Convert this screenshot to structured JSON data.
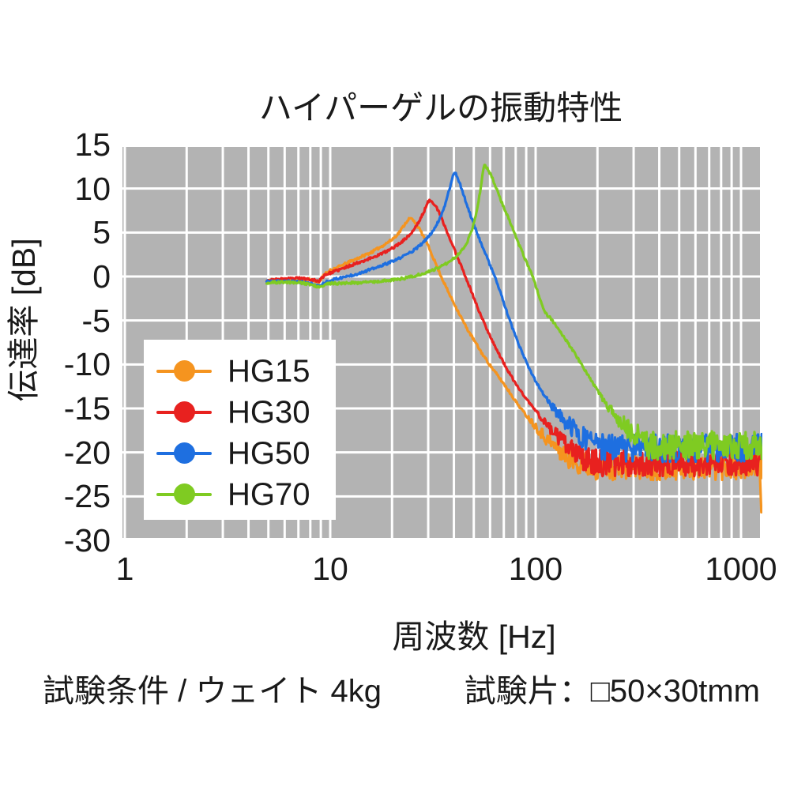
{
  "title": "ハイパーゲルの振動特性",
  "caption": {
    "left": "試験条件 / ウェイト 4kg",
    "right": "試験片：□50×30tmm"
  },
  "legend": {
    "items": [
      {
        "label": "HG15",
        "color": "#f5941f"
      },
      {
        "label": "HG30",
        "color": "#e8211f"
      },
      {
        "label": "HG50",
        "color": "#1e6fe0"
      },
      {
        "label": "HG70",
        "color": "#7fcb22"
      }
    ]
  },
  "colors": {
    "panel_bg": "#b3b3b3",
    "grid": "#ffffff",
    "text": "#1a1a1a",
    "page_bg": "#ffffff"
  },
  "chart_data": {
    "type": "line",
    "title": "ハイパーゲルの振動特性",
    "xlabel": "周波数 [Hz]",
    "ylabel": "伝達率 [dB]",
    "log_x": true,
    "xlim": [
      0.95,
      1260
    ],
    "ylim": [
      -30,
      15
    ],
    "xticks": [
      1,
      10,
      100,
      1000
    ],
    "yticks": [
      15,
      10,
      5,
      0,
      -5,
      -10,
      -15,
      -20,
      -25,
      -30
    ],
    "grid": "on-white-over-gray",
    "legend_position": "lower left",
    "samples_per_decade": 280,
    "smooth_noise_db": 0.14,
    "series": [
      {
        "name": "HG15",
        "color": "#f5941f",
        "seed": 11,
        "peak_hz": 24,
        "peak_db": 6.6,
        "floor_db": -21.6,
        "floor_noise_db": 1.55,
        "end_drop": [
          [
            1235,
            -22.2
          ],
          [
            1256,
            -26.8
          ]
        ],
        "points": [
          [
            4.9,
            -0.5
          ],
          [
            6,
            -0.4
          ],
          [
            7,
            -0.3
          ],
          [
            8,
            -0.35
          ],
          [
            8.8,
            -0.65
          ],
          [
            9.4,
            0.25
          ],
          [
            10,
            0.7
          ],
          [
            11,
            1.1
          ],
          [
            12.5,
            1.7
          ],
          [
            14,
            2.2
          ],
          [
            16,
            2.8
          ],
          [
            18,
            3.5
          ],
          [
            20,
            4.2
          ],
          [
            21.5,
            4.9
          ],
          [
            23,
            5.9
          ],
          [
            24,
            6.5
          ],
          [
            24.8,
            6.6
          ],
          [
            26,
            6.1
          ],
          [
            27.5,
            5.2
          ],
          [
            29,
            4.2
          ],
          [
            31,
            2.7
          ],
          [
            33,
            1.2
          ],
          [
            35,
            -0.2
          ],
          [
            38,
            -2.0
          ],
          [
            42,
            -4.0
          ],
          [
            46,
            -5.8
          ],
          [
            50,
            -7.2
          ],
          [
            55,
            -8.8
          ],
          [
            60,
            -10.1
          ],
          [
            66,
            -11.4
          ],
          [
            72,
            -12.6
          ],
          [
            80,
            -14.2
          ],
          [
            88,
            -15.5
          ],
          [
            95,
            -16.4
          ],
          [
            105,
            -17.6
          ],
          [
            115,
            -18.6
          ],
          [
            125,
            -19.4
          ],
          [
            140,
            -20.3
          ],
          [
            155,
            -20.9
          ],
          [
            175,
            -21.3
          ],
          [
            200,
            -21.6
          ]
        ]
      },
      {
        "name": "HG30",
        "color": "#e8211f",
        "seed": 23,
        "peak_hz": 30,
        "peak_db": 8.7,
        "floor_db": -21.2,
        "floor_noise_db": 1.5,
        "points": [
          [
            4.9,
            -0.45
          ],
          [
            6,
            -0.3
          ],
          [
            7,
            -0.2
          ],
          [
            8,
            -0.3
          ],
          [
            8.8,
            -0.55
          ],
          [
            9.4,
            0.2
          ],
          [
            10,
            0.4
          ],
          [
            11.5,
            0.9
          ],
          [
            13,
            1.4
          ],
          [
            15,
            1.9
          ],
          [
            17,
            2.4
          ],
          [
            19,
            2.9
          ],
          [
            21,
            3.5
          ],
          [
            23,
            4.2
          ],
          [
            25,
            5.0
          ],
          [
            27,
            6.2
          ],
          [
            28.5,
            7.3
          ],
          [
            30,
            8.5
          ],
          [
            30.8,
            8.7
          ],
          [
            32,
            8.3
          ],
          [
            33.5,
            7.5
          ],
          [
            35,
            6.5
          ],
          [
            37,
            5.1
          ],
          [
            39,
            3.8
          ],
          [
            41,
            2.6
          ],
          [
            44,
            0.9
          ],
          [
            47,
            -0.8
          ],
          [
            50,
            -2.4
          ],
          [
            54,
            -4.4
          ],
          [
            58,
            -6.0
          ],
          [
            63,
            -7.8
          ],
          [
            68,
            -9.3
          ],
          [
            74,
            -10.9
          ],
          [
            80,
            -12.2
          ],
          [
            88,
            -13.6
          ],
          [
            95,
            -14.6
          ],
          [
            105,
            -15.9
          ],
          [
            115,
            -17.0
          ],
          [
            128,
            -18.2
          ],
          [
            142,
            -19.3
          ],
          [
            158,
            -20.2
          ],
          [
            175,
            -20.8
          ],
          [
            200,
            -21.2
          ]
        ]
      },
      {
        "name": "HG50",
        "color": "#1e6fe0",
        "seed": 37,
        "peak_hz": 40,
        "peak_db": 11.9,
        "floor_db": -19.5,
        "floor_noise_db": 1.6,
        "points": [
          [
            4.9,
            -0.6
          ],
          [
            6,
            -0.55
          ],
          [
            7,
            -0.6
          ],
          [
            8,
            -0.8
          ],
          [
            8.8,
            -1.1
          ],
          [
            9.5,
            -0.65
          ],
          [
            10,
            -0.45
          ],
          [
            11,
            -0.2
          ],
          [
            12,
            0.0
          ],
          [
            13.5,
            0.3
          ],
          [
            15,
            0.65
          ],
          [
            17,
            1.05
          ],
          [
            19,
            1.5
          ],
          [
            21,
            1.9
          ],
          [
            23.5,
            2.5
          ],
          [
            26,
            3.1
          ],
          [
            28.5,
            3.9
          ],
          [
            31,
            4.9
          ],
          [
            33,
            5.9
          ],
          [
            35,
            7.2
          ],
          [
            36.5,
            8.4
          ],
          [
            38,
            9.9
          ],
          [
            39.3,
            11.2
          ],
          [
            40.2,
            11.9
          ],
          [
            41.5,
            11.4
          ],
          [
            43,
            10.4
          ],
          [
            45,
            9.0
          ],
          [
            47,
            7.7
          ],
          [
            49,
            6.5
          ],
          [
            51,
            5.4
          ],
          [
            54,
            3.9
          ],
          [
            57,
            2.6
          ],
          [
            60,
            1.3
          ],
          [
            63,
            0.1
          ],
          [
            66,
            -1.2
          ],
          [
            70,
            -3.0
          ],
          [
            74,
            -4.7
          ],
          [
            78,
            -6.2
          ],
          [
            83,
            -7.8
          ],
          [
            88,
            -9.2
          ],
          [
            94,
            -10.7
          ],
          [
            100,
            -11.9
          ],
          [
            108,
            -13.2
          ],
          [
            117,
            -14.4
          ],
          [
            127,
            -15.5
          ],
          [
            138,
            -16.4
          ],
          [
            150,
            -17.2
          ],
          [
            165,
            -18.0
          ],
          [
            180,
            -18.6
          ],
          [
            200,
            -19.1
          ],
          [
            220,
            -19.5
          ]
        ]
      },
      {
        "name": "HG70",
        "color": "#7fcb22",
        "seed": 51,
        "peak_hz": 56,
        "peak_db": 12.7,
        "floor_db": -19.2,
        "floor_noise_db": 1.6,
        "points": [
          [
            4.9,
            -0.7
          ],
          [
            6,
            -0.65
          ],
          [
            7,
            -0.7
          ],
          [
            8,
            -0.9
          ],
          [
            8.8,
            -1.15
          ],
          [
            9.5,
            -0.9
          ],
          [
            10,
            -0.8
          ],
          [
            12,
            -0.75
          ],
          [
            14,
            -0.7
          ],
          [
            16,
            -0.6
          ],
          [
            18,
            -0.5
          ],
          [
            20,
            -0.4
          ],
          [
            23,
            -0.2
          ],
          [
            26,
            0.1
          ],
          [
            29,
            0.4
          ],
          [
            32,
            0.8
          ],
          [
            35,
            1.2
          ],
          [
            38,
            1.7
          ],
          [
            41,
            2.3
          ],
          [
            43,
            2.8
          ],
          [
            45,
            3.4
          ],
          [
            47,
            4.2
          ],
          [
            49,
            5.3
          ],
          [
            51,
            6.8
          ],
          [
            53,
            8.9
          ],
          [
            54.5,
            10.7
          ],
          [
            55.7,
            12.4
          ],
          [
            56.5,
            12.7
          ],
          [
            58,
            12.3
          ],
          [
            60,
            11.7
          ],
          [
            62,
            11.0
          ],
          [
            65,
            9.8
          ],
          [
            68,
            8.6
          ],
          [
            71,
            7.5
          ],
          [
            75,
            6.2
          ],
          [
            79,
            4.9
          ],
          [
            83,
            3.6
          ],
          [
            87,
            2.5
          ],
          [
            91,
            1.4
          ],
          [
            95,
            0.5
          ],
          [
            100,
            -1.0
          ],
          [
            104,
            -2.3
          ],
          [
            108,
            -3.4
          ],
          [
            113,
            -4.3
          ],
          [
            120,
            -4.9
          ],
          [
            128,
            -5.9
          ],
          [
            136,
            -6.8
          ],
          [
            145,
            -7.7
          ],
          [
            155,
            -8.7
          ],
          [
            165,
            -9.8
          ],
          [
            178,
            -11.0
          ],
          [
            192,
            -12.3
          ],
          [
            208,
            -13.6
          ],
          [
            225,
            -14.8
          ],
          [
            245,
            -15.9
          ],
          [
            268,
            -16.9
          ],
          [
            292,
            -17.6
          ],
          [
            320,
            -18.2
          ],
          [
            350,
            -19.2
          ]
        ]
      }
    ]
  }
}
